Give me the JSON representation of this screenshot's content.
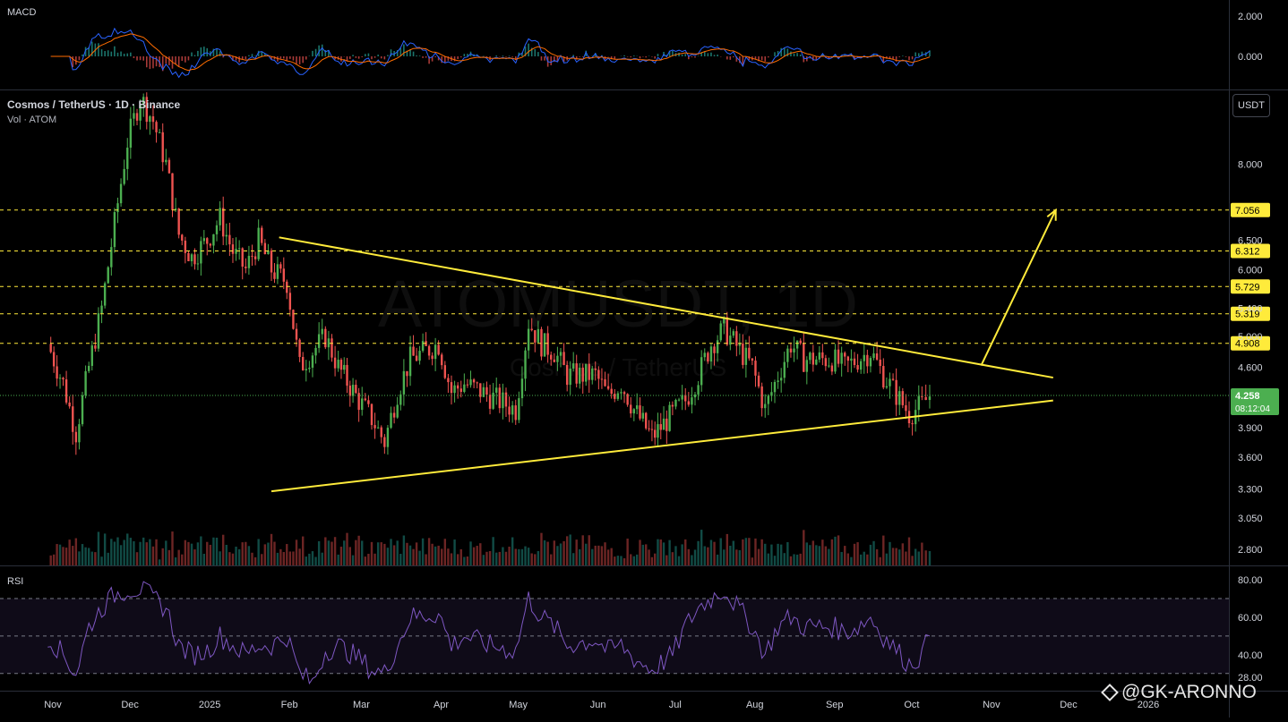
{
  "header": {
    "symbol_title": "Cosmos / TetherUS · 1D · Binance",
    "volume_title": "Vol · ATOM",
    "currency_button": "USDT",
    "watermark_main": "ATOMUSDT, 1D",
    "watermark_sub": "Cosmos / TetherUS"
  },
  "panes": {
    "macd_title": "MACD",
    "rsi_title": "RSI",
    "macd_axis": [
      "2.000",
      "0.000"
    ],
    "rsi_axis": [
      "80.00",
      "60.00",
      "40.00",
      "28.00"
    ]
  },
  "price_axis": {
    "ticks": [
      "8.000",
      "6.500",
      "6.000",
      "5.400",
      "5.000",
      "4.600",
      "3.900",
      "3.600",
      "3.300",
      "3.050",
      "2.800"
    ],
    "levels": [
      "7.056",
      "6.312",
      "5.729",
      "5.319",
      "4.908"
    ],
    "current_price": "4.258",
    "countdown": "08:12:04"
  },
  "time_axis": [
    "Nov",
    "Dec",
    "2025",
    "Feb",
    "Mar",
    "Apr",
    "May",
    "Jun",
    "Jul",
    "Aug",
    "Sep",
    "Oct",
    "Nov",
    "Dec",
    "2026"
  ],
  "brand": "@GK-ARONNO",
  "colors": {
    "up": "#26a69a",
    "up_bright": "#4caf50",
    "down": "#ef5350",
    "trend": "#ffeb3b",
    "level_label_bg": "#ffeb3b",
    "price_label_bg": "#4caf50",
    "rsi": "#7e57c2",
    "macd_line": "#2962ff",
    "signal_line": "#ff6d00"
  },
  "chart_data": {
    "type": "candlestick",
    "title": "Cosmos / TetherUS · 1D · Binance",
    "scale": "log",
    "x": [
      "2024-10-30",
      "2024-11-05",
      "2024-11-10",
      "2024-11-15",
      "2024-11-20",
      "2024-11-25",
      "2024-11-30",
      "2024-12-05",
      "2024-12-10",
      "2024-12-15",
      "2024-12-20",
      "2024-12-25",
      "2024-12-31",
      "2025-01-05",
      "2025-01-10",
      "2025-01-15",
      "2025-01-20",
      "2025-01-25",
      "2025-01-31",
      "2025-02-05",
      "2025-02-10",
      "2025-02-15",
      "2025-02-20",
      "2025-02-28",
      "2025-03-05",
      "2025-03-10",
      "2025-03-15",
      "2025-03-20",
      "2025-03-31",
      "2025-04-05",
      "2025-04-10",
      "2025-04-20",
      "2025-04-30",
      "2025-05-05",
      "2025-05-10",
      "2025-05-15",
      "2025-05-20",
      "2025-05-31",
      "2025-06-05",
      "2025-06-10",
      "2025-06-15",
      "2025-06-22",
      "2025-06-30",
      "2025-07-05",
      "2025-07-10",
      "2025-07-15",
      "2025-07-20",
      "2025-07-31",
      "2025-08-05",
      "2025-08-10",
      "2025-08-15",
      "2025-08-20",
      "2025-08-31",
      "2025-09-05",
      "2025-09-10",
      "2025-09-15",
      "2025-09-20",
      "2025-09-30",
      "2025-10-05",
      "2025-10-08"
    ],
    "close": [
      4.9,
      4.4,
      3.85,
      4.6,
      5.4,
      6.8,
      8.5,
      9.6,
      9.0,
      8.0,
      6.6,
      6.2,
      6.5,
      6.9,
      6.3,
      6.0,
      6.5,
      6.0,
      5.8,
      4.6,
      4.8,
      5.0,
      4.6,
      4.2,
      4.0,
      3.75,
      4.3,
      4.7,
      4.9,
      4.3,
      4.4,
      4.25,
      4.1,
      5.2,
      4.9,
      4.8,
      4.5,
      4.5,
      4.25,
      4.4,
      4.1,
      3.8,
      4.05,
      4.2,
      4.5,
      4.9,
      5.1,
      4.6,
      4.1,
      4.5,
      4.9,
      4.7,
      4.7,
      4.6,
      4.7,
      4.8,
      4.5,
      4.05,
      4.15,
      4.258
    ],
    "annotations": {
      "upper_trendline": {
        "from": [
          "2025-01-28",
          6.55
        ],
        "to": [
          "2025-11-25",
          4.47
        ]
      },
      "lower_trendline": {
        "from": [
          "2025-01-25",
          3.28
        ],
        "to": [
          "2025-11-25",
          4.2
        ]
      },
      "projection_arrow": {
        "from": [
          "2025-10-28",
          4.62
        ],
        "to": [
          "2025-11-26",
          7.056
        ]
      },
      "horizontal_levels": [
        7.056,
        6.312,
        5.729,
        5.319,
        4.908
      ]
    },
    "rsi": [
      50,
      40,
      30,
      55,
      65,
      72,
      75,
      75,
      70,
      65,
      45,
      40,
      42,
      50,
      45,
      40,
      45,
      45,
      50,
      30,
      25,
      42,
      45,
      38,
      32,
      30,
      45,
      60,
      62,
      45,
      50,
      45,
      42,
      70,
      60,
      55,
      45,
      48,
      42,
      45,
      38,
      32,
      40,
      55,
      65,
      70,
      75,
      55,
      40,
      55,
      60,
      55,
      55,
      52,
      55,
      60,
      50,
      35,
      40,
      50
    ]
  }
}
